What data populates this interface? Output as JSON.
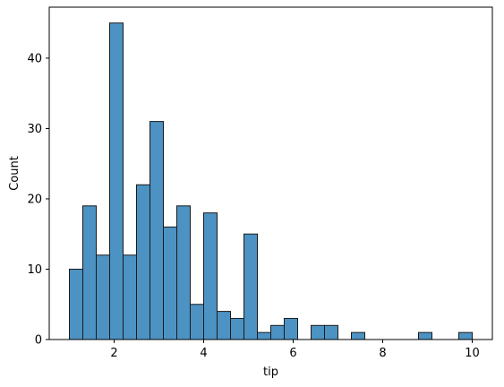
{
  "chart_data": {
    "type": "bar",
    "subtype": "histogram",
    "title": "",
    "xlabel": "tip",
    "ylabel": "Count",
    "xlim": [
      0.55,
      10.45
    ],
    "ylim": [
      0,
      47.25
    ],
    "x_ticks": [
      2,
      4,
      6,
      8,
      10
    ],
    "y_ticks": [
      0,
      10,
      20,
      30,
      40
    ],
    "grid": false,
    "bar_color": "#4c92c3",
    "edge_color": "#1a1a1a",
    "bin_edges": [
      1.0,
      1.3,
      1.6,
      1.9,
      2.2,
      2.5,
      2.8,
      3.1,
      3.4,
      3.7,
      4.0,
      4.3,
      4.6,
      4.9,
      5.2,
      5.5,
      5.8,
      6.1,
      6.4,
      6.7,
      7.0,
      7.3,
      7.6,
      7.9,
      8.2,
      8.5,
      8.8,
      9.1,
      9.4,
      9.7,
      10.0
    ],
    "counts": [
      10,
      19,
      12,
      45,
      12,
      22,
      31,
      16,
      19,
      5,
      18,
      4,
      3,
      15,
      1,
      2,
      3,
      0,
      2,
      2,
      0,
      1,
      0,
      0,
      0,
      0,
      1,
      0,
      0,
      1
    ]
  }
}
